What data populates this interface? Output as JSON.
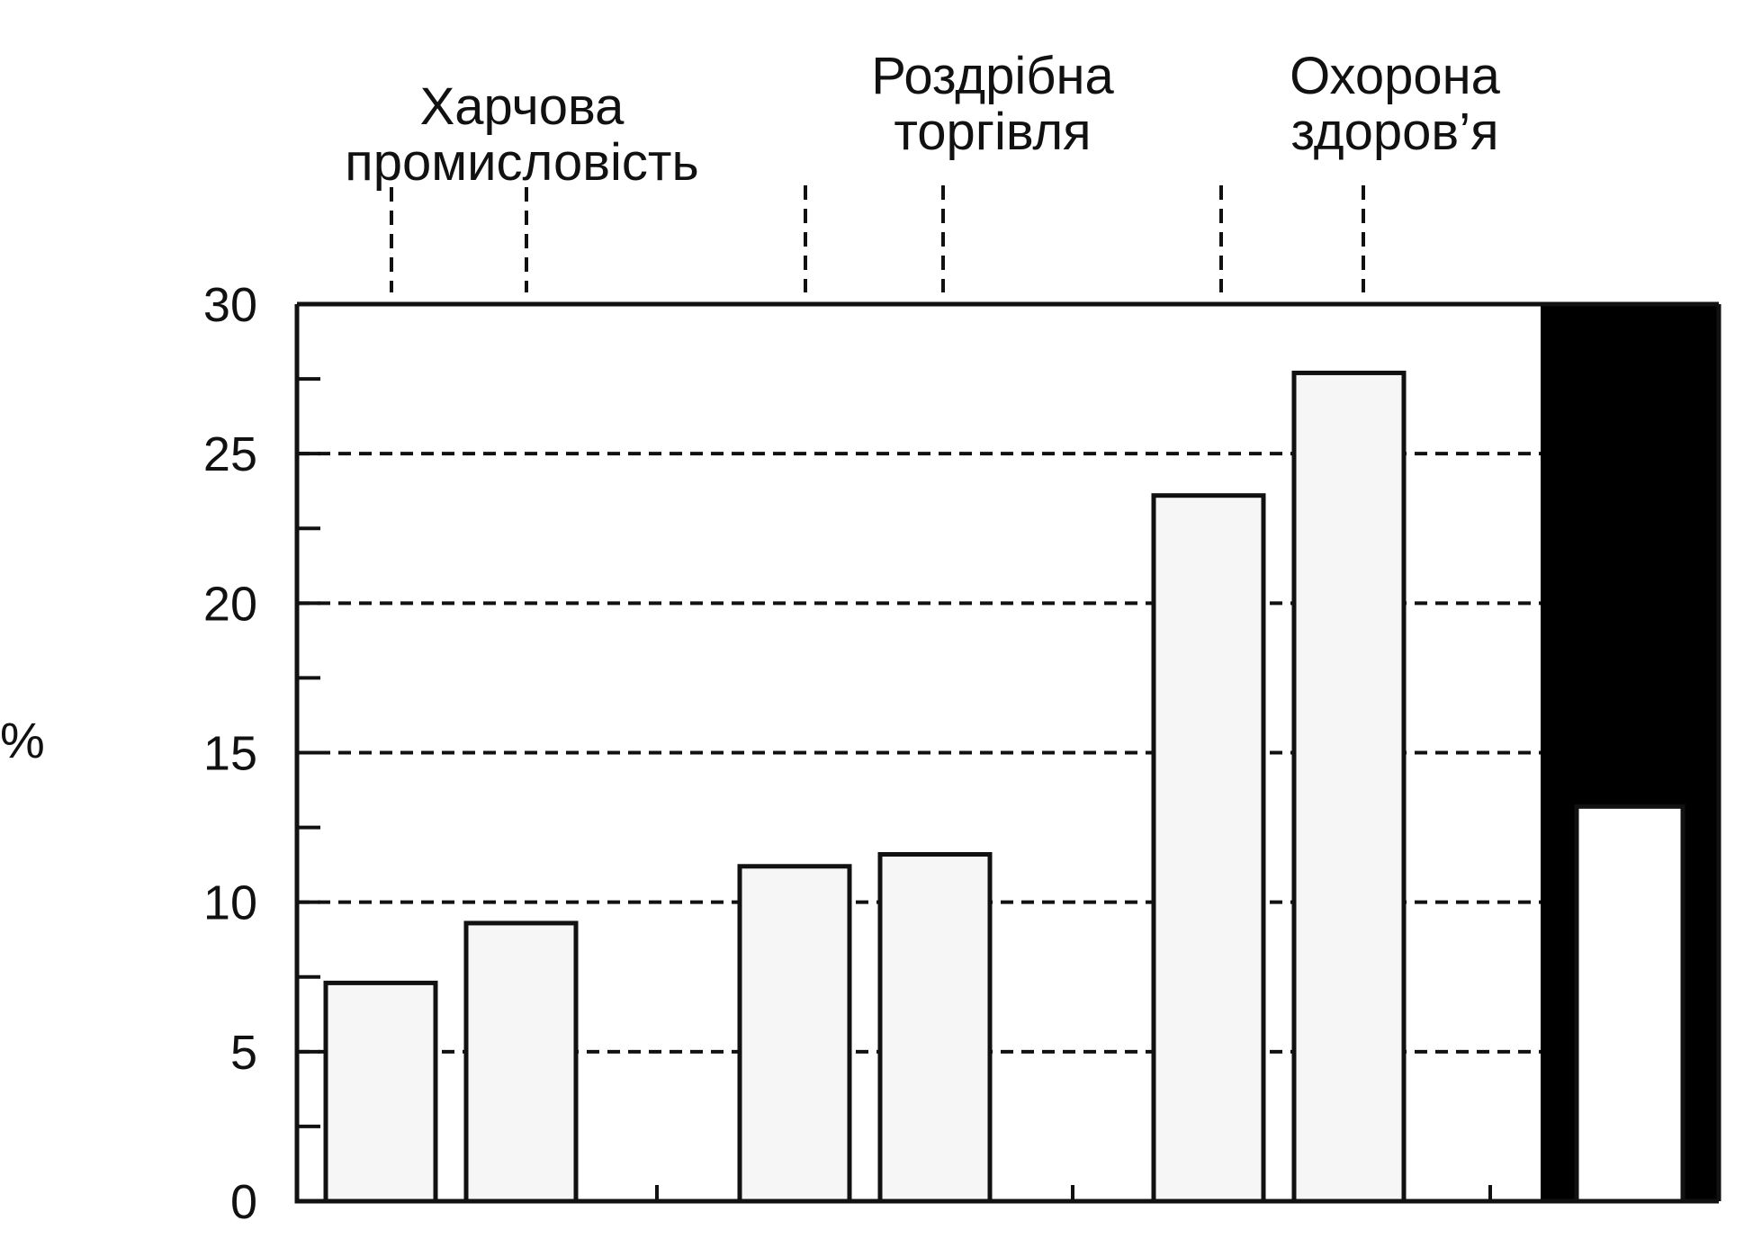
{
  "chart_data": {
    "type": "bar",
    "ylabel": "%",
    "ylim": [
      0,
      30
    ],
    "yticks": [
      0,
      5,
      10,
      15,
      20,
      25,
      30
    ],
    "grid": true,
    "groups": [
      {
        "label_lines": [
          "Харчова",
          "промисловість"
        ],
        "values": [
          7.3,
          9.3
        ]
      },
      {
        "label_lines": [
          "Роздрібна",
          "торгівля"
        ],
        "values": [
          11.2,
          11.6
        ]
      },
      {
        "label_lines": [
          "Охорона",
          "здоров’я"
        ],
        "values": [
          23.6,
          27.7
        ]
      }
    ],
    "highlight_bar": {
      "value": 13.2,
      "background": "#000000"
    }
  }
}
